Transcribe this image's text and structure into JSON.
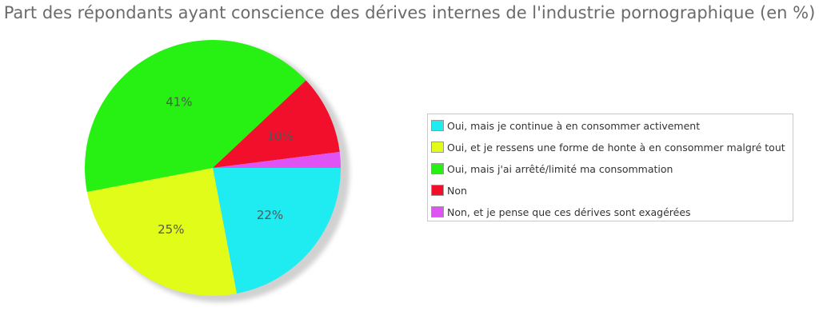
{
  "chart_data": {
    "type": "pie",
    "title": "Part des répondants ayant conscience des dérives internes de l'industrie pornographique (en %)",
    "categories": [
      "Oui, mais je continue à en consommer activement",
      "Oui, et je ressens une forme de honte à en consommer malgré tout",
      "Oui, mais j'ai arrêté/limité ma consommation",
      "Non",
      "Non, et je pense que ces dérives sont exagérées"
    ],
    "values": [
      22,
      25,
      41,
      10,
      2
    ],
    "value_labels": [
      "22%",
      "25%",
      "41%",
      "10%",
      ""
    ],
    "colors": [
      "#1fecf1",
      "#e1fc18",
      "#27f013",
      "#f10f2c",
      "#df53f5"
    ],
    "legend_position": "right",
    "start_angle_deg": 0,
    "direction": "clockwise"
  }
}
